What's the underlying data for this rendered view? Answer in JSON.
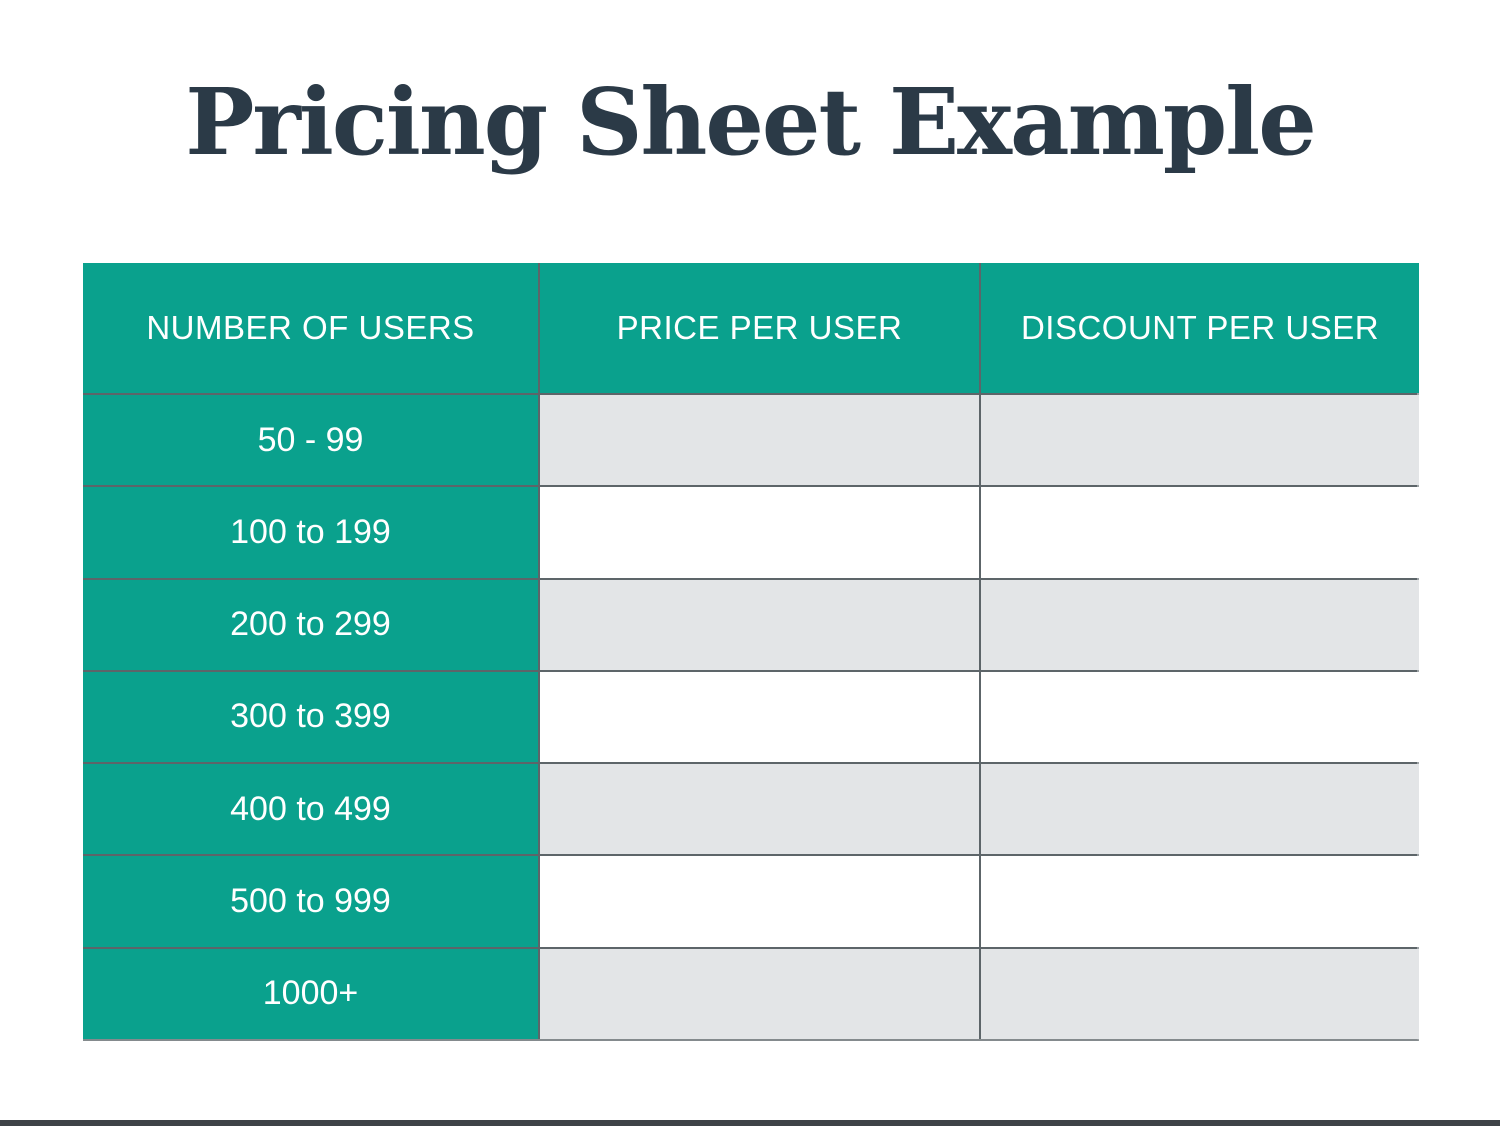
{
  "page": {
    "title": "Pricing Sheet Example"
  },
  "table": {
    "columns": [
      "NUMBER OF USERS",
      "PRICE PER USER",
      "DISCOUNT PER USER"
    ],
    "rows": [
      {
        "users": "50 - 99",
        "price": "",
        "discount": ""
      },
      {
        "users": "100 to 199",
        "price": "",
        "discount": ""
      },
      {
        "users": "200 to 299",
        "price": "",
        "discount": ""
      },
      {
        "users": "300 to 399",
        "price": "",
        "discount": ""
      },
      {
        "users": "400 to 499",
        "price": "",
        "discount": ""
      },
      {
        "users": "500 to 999",
        "price": "",
        "discount": ""
      },
      {
        "users": "1000+",
        "price": "",
        "discount": ""
      }
    ]
  },
  "colors": {
    "teal": "#0AA18D",
    "row_stripe_gray": "#E3E5E7",
    "row_stripe_white": "#FFFFFF",
    "grid_line": "#5D6569",
    "title_text": "#2B3A47",
    "header_text": "#FFFFFF",
    "bottom_bar": "#3E4347"
  }
}
